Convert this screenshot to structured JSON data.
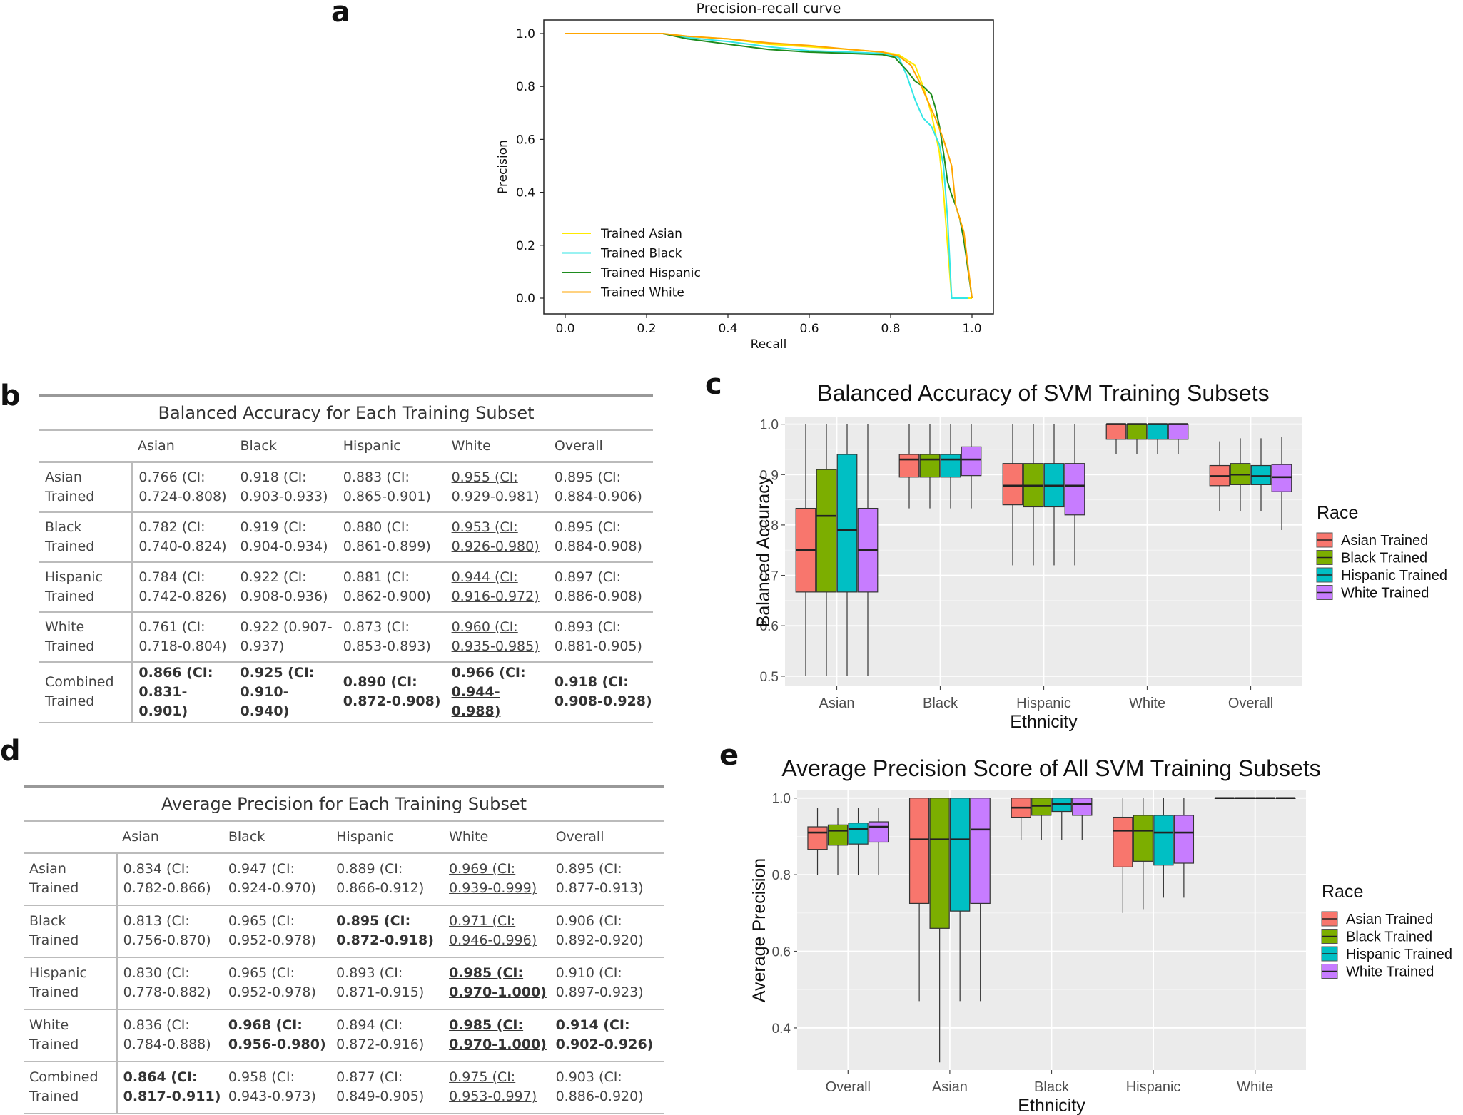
{
  "panels": {
    "a": "a",
    "b": "b",
    "c": "c",
    "d": "d",
    "e": "e"
  },
  "chart_data": [
    {
      "type": "line",
      "id": "a",
      "title": "Precision-recall curve",
      "xlabel": "Recall",
      "ylabel": "Precision",
      "xlim": [
        0.0,
        1.0
      ],
      "ylim": [
        0.0,
        1.0
      ],
      "xticks": [
        "0.0",
        "0.2",
        "0.4",
        "0.6",
        "0.8",
        "1.0"
      ],
      "yticks": [
        "0.0",
        "0.2",
        "0.4",
        "0.6",
        "0.8",
        "1.0"
      ],
      "legend_position": "bottom-left",
      "series": [
        {
          "name": "Trained Asian",
          "color": "#ffea00",
          "x": [
            0.0,
            0.24,
            0.3,
            0.4,
            0.5,
            0.6,
            0.7,
            0.78,
            0.82,
            0.86,
            0.88,
            0.9,
            0.92,
            0.93,
            0.94,
            0.95,
            0.96,
            1.0
          ],
          "y": [
            1.0,
            1.0,
            0.99,
            0.98,
            0.96,
            0.95,
            0.94,
            0.93,
            0.92,
            0.88,
            0.8,
            0.7,
            0.55,
            0.4,
            0.2,
            0.0,
            0.0,
            0.0
          ]
        },
        {
          "name": "Trained Black",
          "color": "#33e6e6",
          "x": [
            0.0,
            0.24,
            0.3,
            0.4,
            0.5,
            0.6,
            0.7,
            0.78,
            0.82,
            0.84,
            0.86,
            0.88,
            0.9,
            0.92,
            0.93,
            0.94,
            0.95,
            0.96,
            0.99
          ],
          "y": [
            1.0,
            1.0,
            0.985,
            0.97,
            0.95,
            0.935,
            0.93,
            0.925,
            0.91,
            0.84,
            0.75,
            0.68,
            0.65,
            0.58,
            0.5,
            0.3,
            0.0,
            0.0,
            0.0
          ]
        },
        {
          "name": "Trained Hispanic",
          "color": "#1e8c1e",
          "x": [
            0.0,
            0.24,
            0.3,
            0.4,
            0.5,
            0.6,
            0.7,
            0.78,
            0.81,
            0.84,
            0.86,
            0.88,
            0.9,
            0.91,
            0.92,
            0.93,
            0.94,
            0.95,
            0.96,
            0.97,
            0.98,
            1.0
          ],
          "y": [
            1.0,
            1.0,
            0.98,
            0.96,
            0.94,
            0.93,
            0.925,
            0.92,
            0.91,
            0.86,
            0.82,
            0.8,
            0.77,
            0.72,
            0.65,
            0.55,
            0.44,
            0.39,
            0.35,
            0.3,
            0.22,
            0.0
          ]
        },
        {
          "name": "Trained White",
          "color": "#ffa500",
          "x": [
            0.0,
            0.24,
            0.3,
            0.4,
            0.5,
            0.6,
            0.7,
            0.78,
            0.82,
            0.85,
            0.87,
            0.89,
            0.91,
            0.93,
            0.95,
            0.96,
            0.98,
            1.0
          ],
          "y": [
            1.0,
            1.0,
            0.99,
            0.98,
            0.965,
            0.955,
            0.94,
            0.93,
            0.915,
            0.88,
            0.82,
            0.75,
            0.68,
            0.6,
            0.5,
            0.35,
            0.25,
            0.0
          ]
        }
      ]
    },
    {
      "type": "box",
      "id": "c",
      "title": "Balanced Accuracy of SVM Training Subsets",
      "xlabel": "Ethnicity",
      "ylabel": "Balanced Accuracy",
      "ylim": [
        0.48,
        1.015
      ],
      "yticks": [
        "0.5",
        "0.6",
        "0.7",
        "0.8",
        "0.9",
        "1.0"
      ],
      "legend_title": "Race",
      "legend_position": "right",
      "categories": [
        "Asian",
        "Black",
        "Hispanic",
        "White",
        "Overall"
      ],
      "series": [
        {
          "name": "Asian Trained",
          "color": "#f8766d",
          "boxes": [
            [
              0.5,
              0.667,
              0.75,
              0.833,
              1.0
            ],
            [
              0.833,
              0.895,
              0.93,
              0.94,
              1.0
            ],
            [
              0.72,
              0.84,
              0.878,
              0.922,
              1.0
            ],
            [
              0.94,
              0.97,
              1.0,
              1.0,
              1.0
            ],
            [
              0.828,
              0.878,
              0.897,
              0.918,
              0.966
            ]
          ]
        },
        {
          "name": "Black Trained",
          "color": "#7cae00",
          "boxes": [
            [
              0.5,
              0.667,
              0.818,
              0.91,
              1.0
            ],
            [
              0.833,
              0.895,
              0.93,
              0.94,
              1.0
            ],
            [
              0.72,
              0.836,
              0.878,
              0.922,
              1.0
            ],
            [
              0.94,
              0.97,
              1.0,
              1.0,
              1.0
            ],
            [
              0.828,
              0.88,
              0.9,
              0.922,
              0.972
            ]
          ]
        },
        {
          "name": "Hispanic Trained",
          "color": "#00bfc4",
          "boxes": [
            [
              0.5,
              0.667,
              0.79,
              0.94,
              1.0
            ],
            [
              0.833,
              0.895,
              0.93,
              0.94,
              1.0
            ],
            [
              0.72,
              0.836,
              0.878,
              0.922,
              1.0
            ],
            [
              0.94,
              0.97,
              1.0,
              1.0,
              1.0
            ],
            [
              0.828,
              0.88,
              0.897,
              0.918,
              0.972
            ]
          ]
        },
        {
          "name": "White Trained",
          "color": "#c77cff",
          "boxes": [
            [
              0.5,
              0.667,
              0.75,
              0.833,
              1.0
            ],
            [
              0.833,
              0.898,
              0.93,
              0.955,
              1.0
            ],
            [
              0.72,
              0.82,
              0.878,
              0.922,
              1.0
            ],
            [
              0.94,
              0.97,
              1.0,
              1.0,
              1.0
            ],
            [
              0.79,
              0.866,
              0.895,
              0.92,
              0.975
            ]
          ]
        }
      ]
    },
    {
      "type": "box",
      "id": "e",
      "title": "Average Precision Score of All SVM Training Subsets",
      "xlabel": "Ethnicity",
      "ylabel": "Average Precision",
      "ylim": [
        0.29,
        1.02
      ],
      "yticks": [
        "0.4",
        "0.6",
        "0.8",
        "1.0"
      ],
      "legend_title": "Race",
      "legend_position": "right",
      "categories": [
        "Overall",
        "Asian",
        "Black",
        "Hispanic",
        "White"
      ],
      "series": [
        {
          "name": "Asian Trained",
          "color": "#f8766d",
          "boxes": [
            [
              0.8,
              0.866,
              0.91,
              0.925,
              0.975
            ],
            [
              0.47,
              0.725,
              0.892,
              1.0,
              1.0
            ],
            [
              0.89,
              0.95,
              0.975,
              1.0,
              1.0
            ],
            [
              0.7,
              0.82,
              0.915,
              0.95,
              1.0
            ],
            [
              1.0,
              1.0,
              1.0,
              1.0,
              1.0
            ]
          ]
        },
        {
          "name": "Black Trained",
          "color": "#7cae00",
          "boxes": [
            [
              0.8,
              0.877,
              0.915,
              0.93,
              0.975
            ],
            [
              0.31,
              0.66,
              0.892,
              1.0,
              1.0
            ],
            [
              0.89,
              0.955,
              0.98,
              1.0,
              1.0
            ],
            [
              0.71,
              0.835,
              0.915,
              0.955,
              1.0
            ],
            [
              1.0,
              1.0,
              1.0,
              1.0,
              1.0
            ]
          ]
        },
        {
          "name": "Hispanic Trained",
          "color": "#00bfc4",
          "boxes": [
            [
              0.8,
              0.88,
              0.92,
              0.935,
              0.975
            ],
            [
              0.47,
              0.705,
              0.892,
              1.0,
              1.0
            ],
            [
              0.89,
              0.965,
              0.985,
              1.0,
              1.0
            ],
            [
              0.74,
              0.825,
              0.91,
              0.955,
              1.0
            ],
            [
              1.0,
              1.0,
              1.0,
              1.0,
              1.0
            ]
          ]
        },
        {
          "name": "White Trained",
          "color": "#c77cff",
          "boxes": [
            [
              0.8,
              0.885,
              0.925,
              0.938,
              0.975
            ],
            [
              0.47,
              0.725,
              0.918,
              1.0,
              1.0
            ],
            [
              0.89,
              0.955,
              0.985,
              1.0,
              1.0
            ],
            [
              0.74,
              0.83,
              0.91,
              0.955,
              1.0
            ],
            [
              1.0,
              1.0,
              1.0,
              1.0,
              1.0
            ]
          ]
        }
      ]
    }
  ],
  "table_b": {
    "title": "Balanced Accuracy for Each Training Subset",
    "columns": [
      "Asian",
      "Black",
      "Hispanic",
      "White",
      "Overall"
    ],
    "rows": [
      {
        "label": [
          "Asian Trained",
          ""
        ],
        "bold": false,
        "cells": [
          [
            "0.766 (CI:",
            "0.724-0.808)"
          ],
          [
            "0.918 (CI:",
            "0.903-0.933)"
          ],
          [
            "0.883 (CI:",
            "0.865-0.901)"
          ],
          [
            "0.955 (CI:",
            "0.929-0.981)"
          ],
          [
            "0.895 (CI:",
            "0.884-0.906)"
          ]
        ]
      },
      {
        "label": [
          "Black Trained",
          ""
        ],
        "bold": false,
        "cells": [
          [
            "0.782 (CI:",
            "0.740-0.824)"
          ],
          [
            "0.919 (CI:",
            "0.904-0.934)"
          ],
          [
            "0.880 (CI:",
            "0.861-0.899)"
          ],
          [
            "0.953 (CI:",
            "0.926-0.980)"
          ],
          [
            "0.895 (CI:",
            "0.884-0.908)"
          ]
        ]
      },
      {
        "label": [
          "Hispanic",
          "Trained"
        ],
        "bold": false,
        "cells": [
          [
            "0.784 (CI:",
            "0.742-0.826)"
          ],
          [
            "0.922 (CI:",
            "0.908-0.936)"
          ],
          [
            "0.881 (CI:",
            "0.862-0.900)"
          ],
          [
            "0.944 (CI:",
            "0.916-0.972)"
          ],
          [
            "0.897 (CI:",
            "0.886-0.908)"
          ]
        ]
      },
      {
        "label": [
          "White Trained",
          ""
        ],
        "bold": false,
        "cells": [
          [
            "0.761 (CI:",
            "0.718-0.804)"
          ],
          [
            "0.922 (0.907-",
            "0.937)"
          ],
          [
            "0.873 (CI:",
            "0.853-0.893)"
          ],
          [
            "0.960 (CI:",
            "0.935-0.985)"
          ],
          [
            "0.893 (CI:",
            "0.881-0.905)"
          ]
        ]
      },
      {
        "label": [
          "Combined",
          "Trained"
        ],
        "bold": true,
        "cells": [
          [
            "0.866 (CI:",
            "0.831-0.901)"
          ],
          [
            "0.925 (CI:",
            "0.910-0.940)"
          ],
          [
            "0.890 (CI:",
            "0.872-0.908)"
          ],
          [
            "0.966 (CI:",
            "0.944-0.988)"
          ],
          [
            "0.918 (CI:",
            "0.908-0.928)"
          ]
        ]
      }
    ]
  },
  "table_d": {
    "title": "Average Precision for Each Training Subset",
    "columns": [
      "Asian",
      "Black",
      "Hispanic",
      "White",
      "Overall"
    ],
    "rows": [
      {
        "label": [
          "Asian Trained",
          ""
        ],
        "cells": [
          [
            "0.834 (CI:",
            "0.782-0.866)"
          ],
          [
            "0.947 (CI:",
            "0.924-0.970)"
          ],
          [
            "0.889 (CI:",
            "0.866-0.912)"
          ],
          [
            "0.969 (CI:",
            "0.939-0.999)"
          ],
          [
            "0.895 (CI:",
            "0.877-0.913)"
          ]
        ],
        "bold_cells": []
      },
      {
        "label": [
          "Black Trained",
          ""
        ],
        "cells": [
          [
            "0.813 (CI:",
            "0.756-0.870)"
          ],
          [
            "0.965 (CI:",
            "0.952-0.978)"
          ],
          [
            "0.895 (CI:",
            "0.872-0.918)"
          ],
          [
            "0.971 (CI:",
            "0.946-0.996)"
          ],
          [
            "0.906 (CI:",
            "0.892-0.920)"
          ]
        ],
        "bold_cells": [
          2
        ]
      },
      {
        "label": [
          "Hispanic",
          "Trained"
        ],
        "cells": [
          [
            "0.830 (CI:",
            "0.778-0.882)"
          ],
          [
            "0.965 (CI:",
            "0.952-0.978)"
          ],
          [
            "0.893 (CI:",
            "0.871-0.915)"
          ],
          [
            "0.985 (CI:",
            "0.970-1.000)"
          ],
          [
            "0.910 (CI:",
            "0.897-0.923)"
          ]
        ],
        "bold_cells": [
          3
        ]
      },
      {
        "label": [
          "White Trained",
          ""
        ],
        "cells": [
          [
            "0.836 (CI:",
            "0.784-0.888)"
          ],
          [
            "0.968 (CI:",
            "0.956-0.980)"
          ],
          [
            "0.894 (CI:",
            "0.872-0.916)"
          ],
          [
            "0.985 (CI:",
            "0.970-1.000)"
          ],
          [
            "0.914 (CI:",
            "0.902-0.926)"
          ]
        ],
        "bold_cells": [
          1,
          3,
          4
        ]
      },
      {
        "label": [
          "Combined",
          "Trained"
        ],
        "cells": [
          [
            "0.864 (CI:",
            "0.817-0.911)"
          ],
          [
            "0.958 (CI:",
            "0.943-0.973)"
          ],
          [
            "0.877 (CI:",
            "0.849-0.905)"
          ],
          [
            "0.975 (CI:",
            "0.953-0.997)"
          ],
          [
            "0.903 (CI:",
            "0.886-0.920)"
          ]
        ],
        "bold_cells": [
          0
        ]
      }
    ]
  }
}
